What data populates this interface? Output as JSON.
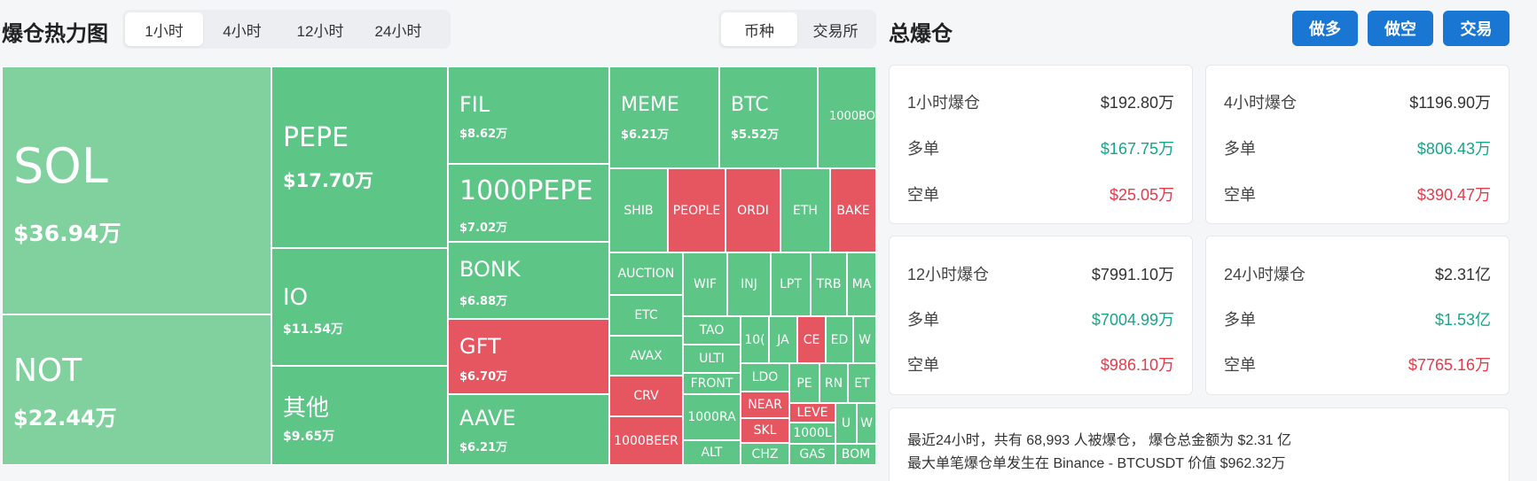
{
  "heatmap": {
    "title": "爆仓热力图",
    "time_tabs": [
      "1小时",
      "4小时",
      "12小时",
      "24小时"
    ],
    "active_time": 0,
    "type_tabs": [
      "币种",
      "交易所"
    ],
    "active_type": 0
  },
  "tiles": {
    "sol": {
      "symbol": "SOL",
      "value": "$36.94万"
    },
    "not": {
      "symbol": "NOT",
      "value": "$22.44万"
    },
    "pepe": {
      "symbol": "PEPE",
      "value": "$17.70万"
    },
    "io": {
      "symbol": "IO",
      "value": "$11.54万"
    },
    "other": {
      "symbol": "其他",
      "value": "$9.65万"
    },
    "fil": {
      "symbol": "FIL",
      "value": "$8.62万"
    },
    "k_pepe": {
      "symbol": "1000PEPE",
      "value": "$7.02万"
    },
    "bonk": {
      "symbol": "BONK",
      "value": "$6.88万"
    },
    "gft": {
      "symbol": "GFT",
      "value": "$6.70万"
    },
    "aave": {
      "symbol": "AAVE",
      "value": "$6.21万"
    },
    "meme": {
      "symbol": "MEME",
      "value": "$6.21万"
    },
    "btc": {
      "symbol": "BTC",
      "value": "$5.52万"
    },
    "k_bonk": {
      "symbol": "1000BO"
    },
    "shib": {
      "symbol": "SHIB"
    },
    "people": {
      "symbol": "PEOPLE"
    },
    "ordi": {
      "symbol": "ORDI"
    },
    "eth": {
      "symbol": "ETH"
    },
    "bake": {
      "symbol": "BAKE"
    },
    "auction": {
      "symbol": "AUCTION"
    },
    "wif": {
      "symbol": "WIF"
    },
    "inj": {
      "symbol": "INJ"
    },
    "lpt": {
      "symbol": "LPT"
    },
    "trb": {
      "symbol": "TRB"
    },
    "ma": {
      "symbol": "MA"
    },
    "etc": {
      "symbol": "ETC"
    },
    "tao": {
      "symbol": "TAO"
    },
    "s10": {
      "symbol": "10("
    },
    "ja": {
      "symbol": "JA"
    },
    "ce": {
      "symbol": "CE"
    },
    "ed": {
      "symbol": "ED"
    },
    "w1": {
      "symbol": "W"
    },
    "avax": {
      "symbol": "AVAX"
    },
    "ulti": {
      "symbol": "ULTI"
    },
    "ldo": {
      "symbol": "LDO"
    },
    "pe": {
      "symbol": "PE"
    },
    "rn": {
      "symbol": "RN"
    },
    "et": {
      "symbol": "ET"
    },
    "crv": {
      "symbol": "CRV"
    },
    "front": {
      "symbol": "FRONT"
    },
    "near": {
      "symbol": "NEAR"
    },
    "leve": {
      "symbol": "LEVE"
    },
    "u": {
      "symbol": "U"
    },
    "w2": {
      "symbol": "W"
    },
    "k_beer": {
      "symbol": "1000BEER"
    },
    "k_ra": {
      "symbol": "1000RA"
    },
    "skl": {
      "symbol": "SKL"
    },
    "k_l": {
      "symbol": "1000L"
    },
    "alt": {
      "symbol": "ALT"
    },
    "chz": {
      "symbol": "CHZ"
    },
    "gas": {
      "symbol": "GAS"
    },
    "bom": {
      "symbol": "BOM"
    }
  },
  "total": {
    "title": "总爆仓",
    "buttons": [
      "做多",
      "做空",
      "交易"
    ],
    "cards": [
      {
        "period": "1小时爆仓",
        "total": "$192.80万",
        "long_label": "多单",
        "long": "$167.75万",
        "short_label": "空单",
        "short": "$25.05万"
      },
      {
        "period": "4小时爆仓",
        "total": "$1196.90万",
        "long_label": "多单",
        "long": "$806.43万",
        "short_label": "空单",
        "short": "$390.47万"
      },
      {
        "period": "12小时爆仓",
        "total": "$7991.10万",
        "long_label": "多单",
        "long": "$7004.99万",
        "short_label": "空单",
        "short": "$986.10万"
      },
      {
        "period": "24小时爆仓",
        "total": "$2.31亿",
        "long_label": "多单",
        "long": "$1.53亿",
        "short_label": "空单",
        "short": "$7765.16万"
      }
    ],
    "summary_line1": "最近24小时，共有 68,993 人被爆仓， 爆仓总金额为 $2.31 亿",
    "summary_line2": "最大单笔爆仓单发生在 Binance - BTCUSDT 价值 $962.32万"
  },
  "colors": {
    "up": "#5dc585",
    "up_light": "#81d19f",
    "down": "#e65661",
    "accent": "#1976d2"
  }
}
